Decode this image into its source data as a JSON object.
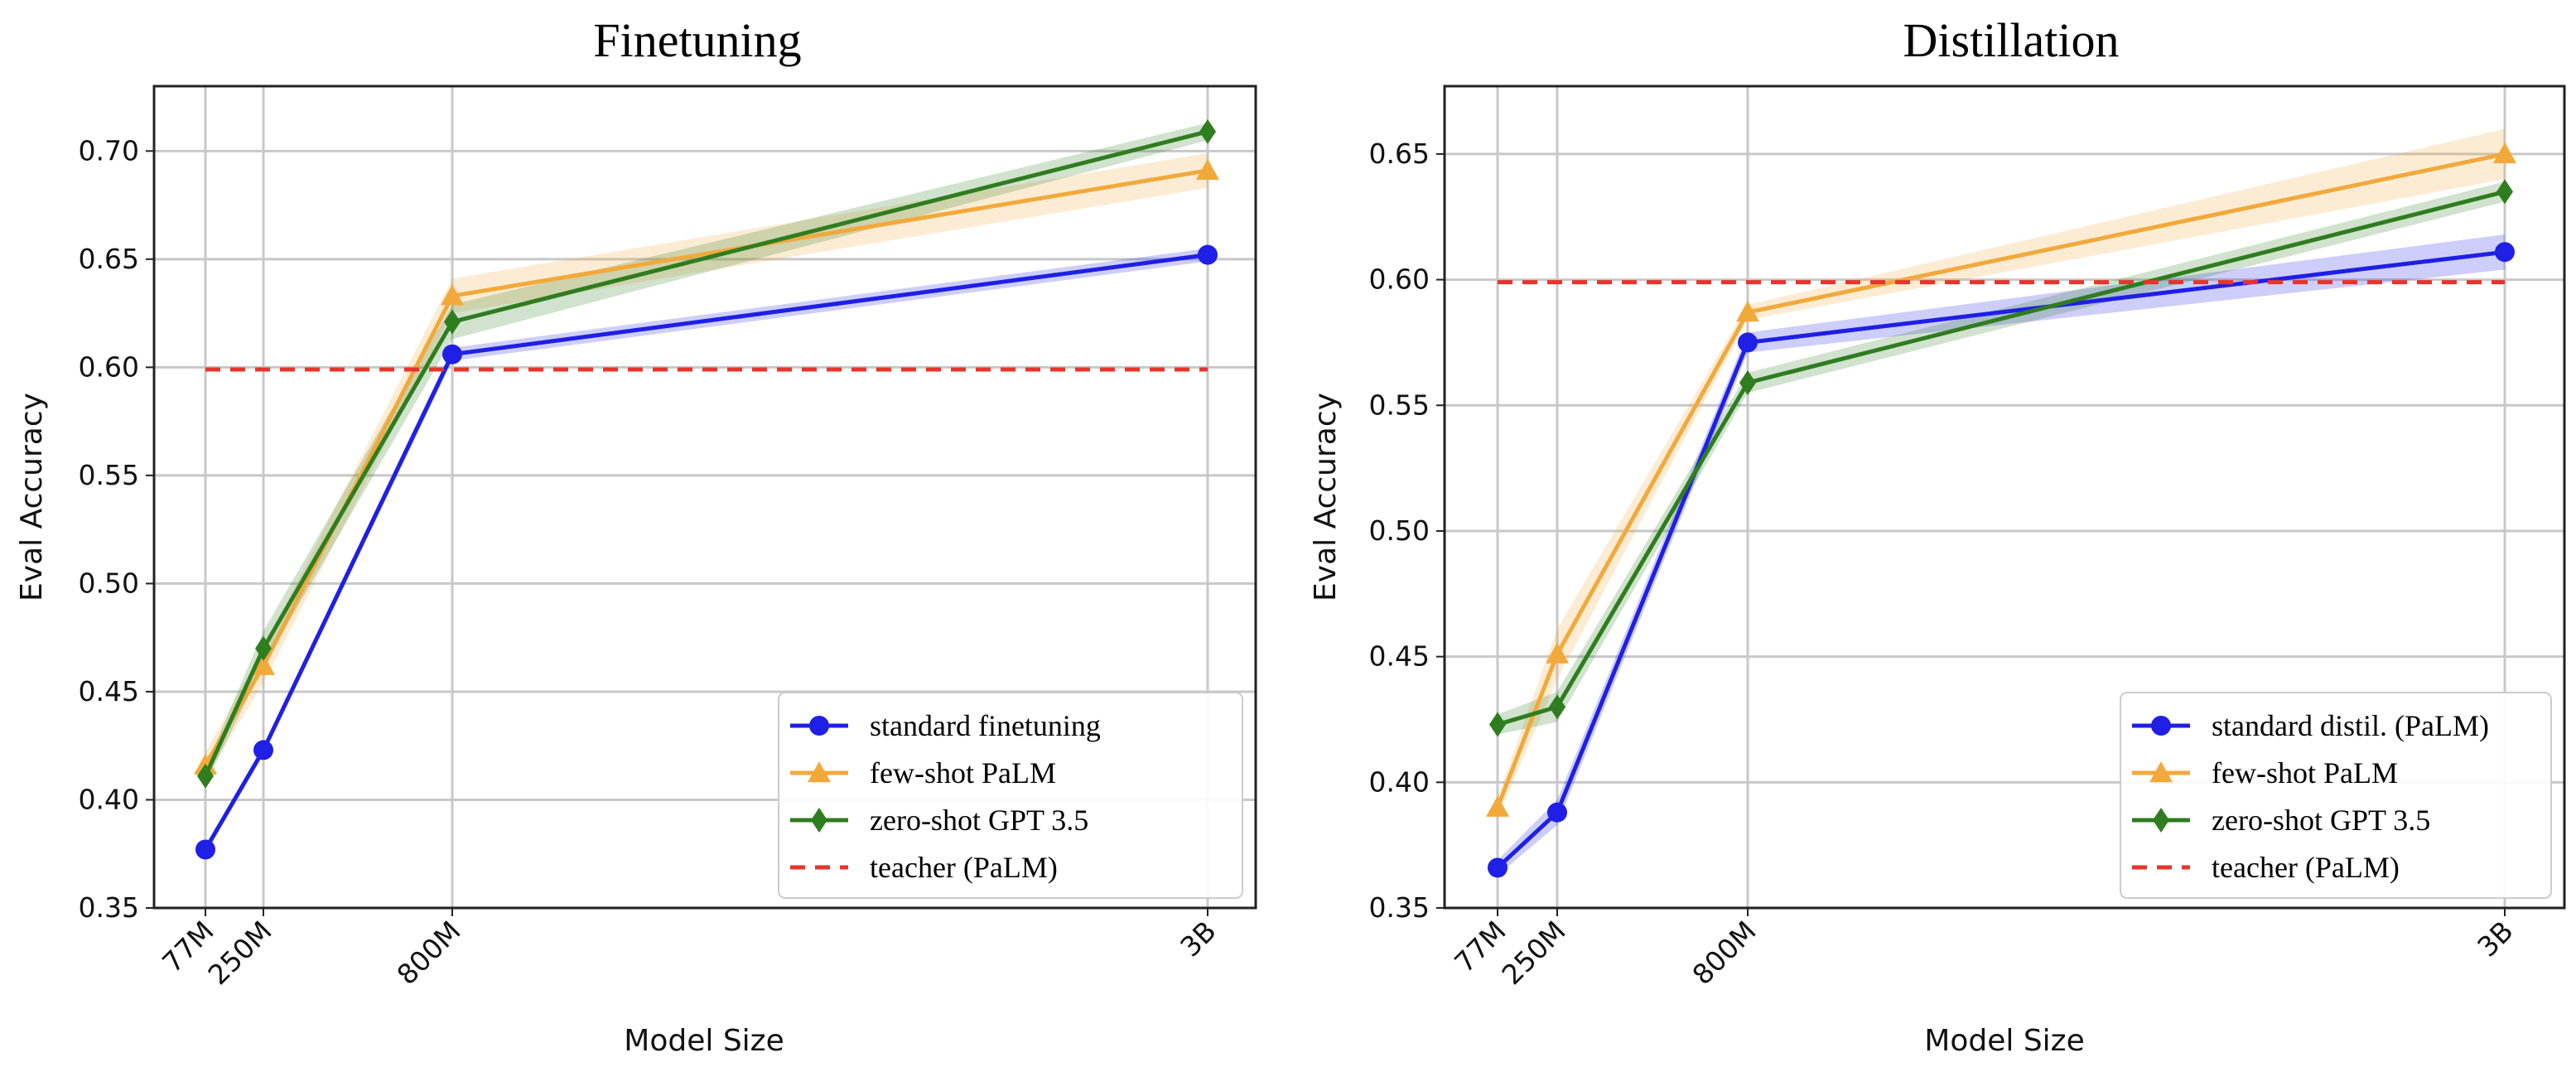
{
  "chart_data": [
    {
      "type": "line",
      "title": "Finetuning",
      "xlabel": "Model Size",
      "ylabel": "Eval Accuracy",
      "categories": [
        "77M",
        "250M",
        "800M",
        "3B"
      ],
      "x": [
        77,
        250,
        800,
        3000
      ],
      "ylim": [
        0.35,
        0.73
      ],
      "yticks": [
        0.35,
        0.4,
        0.45,
        0.5,
        0.55,
        0.6,
        0.65,
        0.7
      ],
      "ytick_labels": [
        "0.35",
        "0.40",
        "0.45",
        "0.50",
        "0.55",
        "0.60",
        "0.65",
        "0.70"
      ],
      "grid": true,
      "legend_position": "bottom-right",
      "series": [
        {
          "name": "standard finetuning",
          "color": "#1f1fe6",
          "marker": "circle",
          "values": [
            0.377,
            0.423,
            0.606,
            0.652
          ],
          "band": [
            0.002,
            0.002,
            0.003,
            0.003
          ]
        },
        {
          "name": "few-shot PaLM",
          "color": "#f2a93b",
          "marker": "triangle",
          "values": [
            0.416,
            0.462,
            0.633,
            0.691
          ],
          "band": [
            0.006,
            0.008,
            0.008,
            0.008
          ]
        },
        {
          "name": "zero-shot GPT 3.5",
          "color": "#2e7d1f",
          "marker": "diamond",
          "values": [
            0.411,
            0.47,
            0.621,
            0.709
          ],
          "band": [
            0.004,
            0.008,
            0.008,
            0.004
          ]
        },
        {
          "name": "teacher (PaLM)",
          "color": "#e8342b",
          "marker": "none",
          "dashed": true,
          "values": [
            0.599,
            0.599,
            0.599,
            0.599
          ]
        }
      ]
    },
    {
      "type": "line",
      "title": "Distillation",
      "xlabel": "Model Size",
      "ylabel": "Eval Accuracy",
      "categories": [
        "77M",
        "250M",
        "800M",
        "3B"
      ],
      "x": [
        77,
        250,
        800,
        3000
      ],
      "ylim": [
        0.35,
        0.677
      ],
      "yticks": [
        0.35,
        0.4,
        0.45,
        0.5,
        0.55,
        0.6,
        0.65
      ],
      "ytick_labels": [
        "0.35",
        "0.40",
        "0.45",
        "0.50",
        "0.55",
        "0.60",
        "0.65"
      ],
      "grid": true,
      "legend_position": "bottom-right",
      "series": [
        {
          "name": "standard distil. (PaLM)",
          "color": "#1f1fe6",
          "marker": "circle",
          "values": [
            0.366,
            0.388,
            0.575,
            0.611
          ],
          "band": [
            0.003,
            0.005,
            0.004,
            0.007
          ]
        },
        {
          "name": "few-shot PaLM",
          "color": "#f2a93b",
          "marker": "triangle",
          "values": [
            0.39,
            0.451,
            0.587,
            0.65
          ],
          "band": [
            0.004,
            0.01,
            0.003,
            0.01
          ]
        },
        {
          "name": "zero-shot GPT 3.5",
          "color": "#2e7d1f",
          "marker": "diamond",
          "values": [
            0.423,
            0.43,
            0.559,
            0.635
          ],
          "band": [
            0.004,
            0.006,
            0.004,
            0.004
          ]
        },
        {
          "name": "teacher (PaLM)",
          "color": "#e8342b",
          "marker": "none",
          "dashed": true,
          "values": [
            0.599,
            0.599,
            0.599,
            0.599
          ]
        }
      ]
    }
  ]
}
